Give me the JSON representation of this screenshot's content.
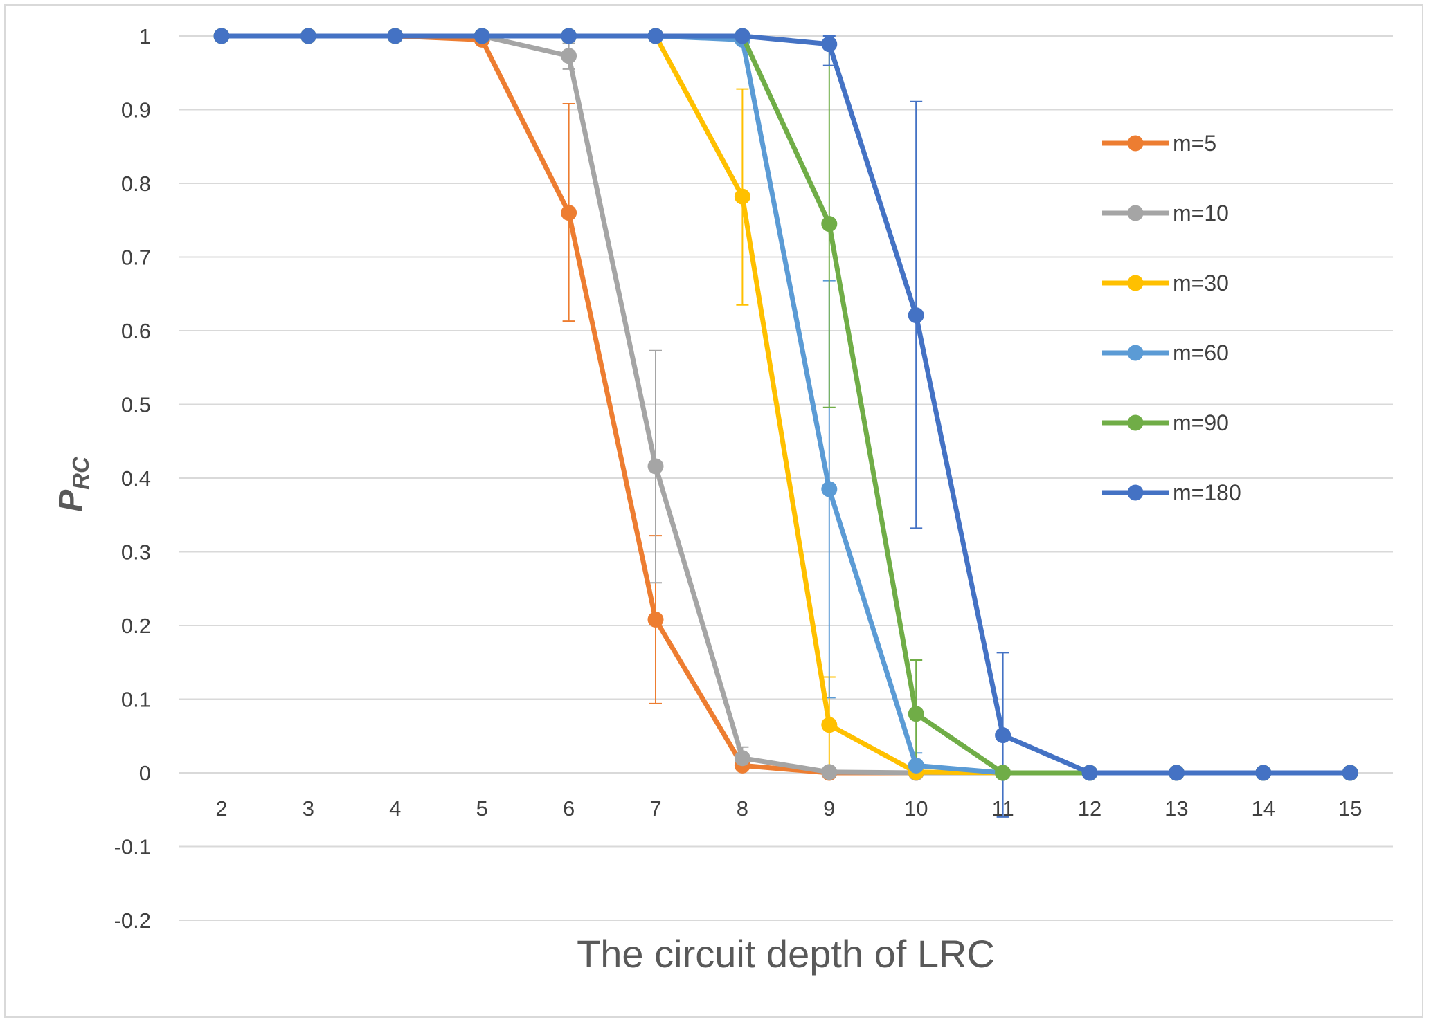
{
  "chart_data": {
    "type": "line",
    "xlabel": "The circuit depth of LRC",
    "ylabel_main": "P",
    "ylabel_sub": "RC",
    "x": [
      2,
      3,
      4,
      5,
      6,
      7,
      8,
      9,
      10,
      11,
      12,
      13,
      14,
      15
    ],
    "ylim": [
      -0.2,
      1
    ],
    "yticks": [
      "1",
      "0.9",
      "0.8",
      "0.7",
      "0.6",
      "0.5",
      "0.4",
      "0.3",
      "0.2",
      "0.1",
      "0",
      "-0.1",
      "-0.2"
    ],
    "xticks": [
      "2",
      "3",
      "4",
      "5",
      "6",
      "7",
      "8",
      "9",
      "10",
      "11",
      "12",
      "13",
      "14",
      "15"
    ],
    "grid": true,
    "legend_position": "right",
    "series": [
      {
        "name": "m=5",
        "color": "#ED7D31",
        "values": [
          1,
          1,
          1,
          0.995,
          0.76,
          0.208,
          0.01,
          0,
          0,
          0,
          0,
          0,
          0,
          0
        ],
        "errors": [
          null,
          null,
          null,
          null,
          [
            0.613,
            0.908
          ],
          [
            0.094,
            0.322
          ],
          null,
          null,
          null,
          null,
          null,
          null,
          null,
          null
        ]
      },
      {
        "name": "m=10",
        "color": "#A5A5A5",
        "values": [
          1,
          1,
          1,
          1,
          0.973,
          0.416,
          0.02,
          0.001,
          0,
          0,
          0,
          0,
          0,
          0
        ],
        "errors": [
          null,
          null,
          null,
          null,
          [
            0.955,
            0.99
          ],
          [
            0.258,
            0.573
          ],
          [
            0.005,
            0.035
          ],
          null,
          null,
          null,
          null,
          null,
          null,
          null
        ]
      },
      {
        "name": "m=30",
        "color": "#FFC000",
        "values": [
          1,
          1,
          1,
          1,
          1,
          1,
          0.782,
          0.065,
          0.001,
          0,
          0,
          0,
          0,
          0
        ],
        "errors": [
          null,
          null,
          null,
          null,
          null,
          null,
          [
            0.635,
            0.928
          ],
          [
            0,
            0.13
          ],
          null,
          null,
          null,
          null,
          null,
          null
        ]
      },
      {
        "name": "m=60",
        "color": "#5B9BD5",
        "values": [
          1,
          1,
          1,
          1,
          1,
          1,
          0.995,
          0.385,
          0.01,
          0,
          0,
          0,
          0,
          0
        ],
        "errors": [
          null,
          null,
          null,
          null,
          null,
          null,
          null,
          [
            0.102,
            0.668
          ],
          [
            0,
            0.027
          ],
          null,
          null,
          null,
          null,
          null
        ]
      },
      {
        "name": "m=90",
        "color": "#70AD47",
        "values": [
          1,
          1,
          1,
          1,
          1,
          1,
          1,
          0.745,
          0.08,
          0,
          0,
          0,
          0,
          0
        ],
        "errors": [
          null,
          null,
          null,
          null,
          null,
          null,
          null,
          [
            0.496,
            0.99
          ],
          [
            0.008,
            0.153
          ],
          null,
          null,
          null,
          null,
          null
        ]
      },
      {
        "name": "m=180",
        "color": "#4472C4",
        "values": [
          1,
          1,
          1,
          1,
          1,
          1,
          1,
          0.989,
          0.621,
          0.051,
          0,
          0,
          0,
          0
        ],
        "errors": [
          null,
          null,
          null,
          null,
          null,
          null,
          null,
          [
            1,
            0.96
          ],
          [
            0.332,
            0.911
          ],
          [
            -0.06,
            0.163
          ],
          null,
          null,
          null,
          null
        ]
      }
    ]
  }
}
